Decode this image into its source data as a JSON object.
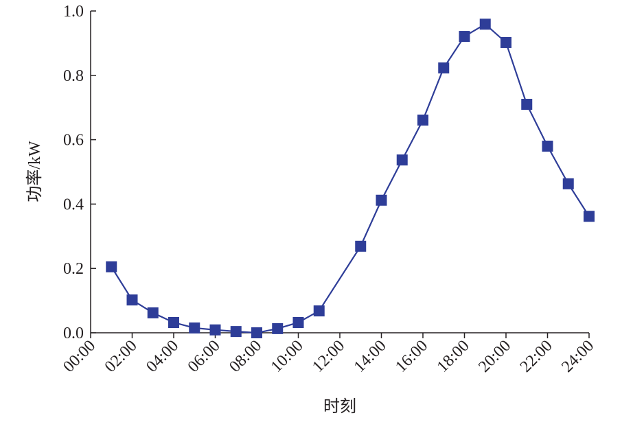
{
  "chart_data": {
    "type": "line",
    "xlabel": "时刻",
    "ylabel": "功率/kW",
    "color": "#2e3d98",
    "marker": "square",
    "x": [
      1,
      2,
      3,
      4,
      5,
      6,
      7,
      8,
      9,
      10,
      11,
      13,
      14,
      15,
      16,
      17,
      18,
      19,
      20,
      21,
      22,
      23,
      24
    ],
    "values": [
      0.205,
      0.102,
      0.062,
      0.032,
      0.015,
      0.009,
      0.004,
      0.0,
      0.013,
      0.032,
      0.068,
      0.269,
      0.412,
      0.537,
      0.661,
      0.823,
      0.921,
      0.959,
      0.902,
      0.71,
      0.58,
      0.463,
      0.362
    ],
    "xlim": [
      0,
      24
    ],
    "xticks": [
      {
        "value": 0,
        "label": "00:00"
      },
      {
        "value": 2,
        "label": "02:00"
      },
      {
        "value": 4,
        "label": "04:00"
      },
      {
        "value": 6,
        "label": "06:00"
      },
      {
        "value": 8,
        "label": "08:00"
      },
      {
        "value": 10,
        "label": "10:00"
      },
      {
        "value": 12,
        "label": "12:00"
      },
      {
        "value": 14,
        "label": "14:00"
      },
      {
        "value": 16,
        "label": "16:00"
      },
      {
        "value": 18,
        "label": "18:00"
      },
      {
        "value": 20,
        "label": "20:00"
      },
      {
        "value": 22,
        "label": "22:00"
      },
      {
        "value": 24,
        "label": "24:00"
      }
    ],
    "ylim": [
      0,
      1
    ],
    "yticks": [
      {
        "value": 0,
        "label": "0.0"
      },
      0.2,
      0.4,
      0.6,
      0.8,
      {
        "value": 1,
        "label": "1.0"
      }
    ],
    "grid": false
  }
}
